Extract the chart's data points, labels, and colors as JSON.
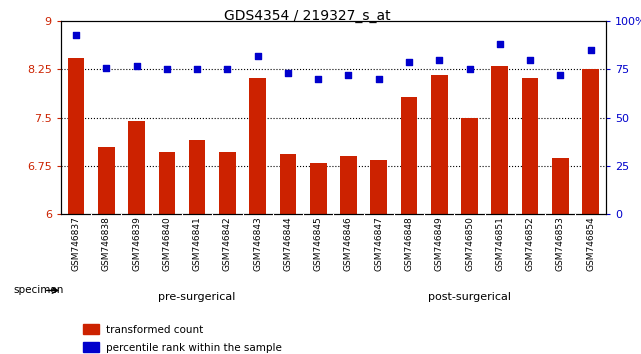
{
  "title": "GDS4354 / 219327_s_at",
  "categories": [
    "GSM746837",
    "GSM746838",
    "GSM746839",
    "GSM746840",
    "GSM746841",
    "GSM746842",
    "GSM746843",
    "GSM746844",
    "GSM746845",
    "GSM746846",
    "GSM746847",
    "GSM746848",
    "GSM746849",
    "GSM746850",
    "GSM746851",
    "GSM746852",
    "GSM746853",
    "GSM746854"
  ],
  "bar_values": [
    8.43,
    7.05,
    7.45,
    6.97,
    7.15,
    6.97,
    8.12,
    6.93,
    6.8,
    6.9,
    6.84,
    7.82,
    8.17,
    7.5,
    8.3,
    8.12,
    6.88,
    8.25
  ],
  "dot_values": [
    93,
    76,
    77,
    75,
    75,
    75,
    82,
    73,
    70,
    72,
    70,
    79,
    80,
    75,
    88,
    80,
    72,
    85
  ],
  "bar_color": "#CC2200",
  "dot_color": "#0000CC",
  "ylim_left": [
    6,
    9
  ],
  "ylim_right": [
    0,
    100
  ],
  "yticks_left": [
    6,
    6.75,
    7.5,
    8.25,
    9
  ],
  "ytick_labels_left": [
    "6",
    "6.75",
    "7.5",
    "8.25",
    "9"
  ],
  "yticks_right": [
    0,
    25,
    50,
    75,
    100
  ],
  "ytick_labels_right": [
    "0",
    "25",
    "50",
    "75",
    "100%"
  ],
  "hlines": [
    6.75,
    7.5,
    8.25
  ],
  "pre_surgical_label": "pre-surgerical",
  "post_surgical_label": "post-surgerical",
  "pre_surgical_count": 9,
  "post_surgical_count": 9,
  "pre_surgical_color": "#CCFFCC",
  "post_surgical_color": "#44DD44",
  "specimen_label": "specimen",
  "legend_bar_label": "transformed count",
  "legend_dot_label": "percentile rank within the sample",
  "bg_color": "#FFFFFF",
  "ticklabel_bg": "#C8C8C8",
  "bar_label_color": "#CC2200",
  "dot_label_color": "#0000CC"
}
